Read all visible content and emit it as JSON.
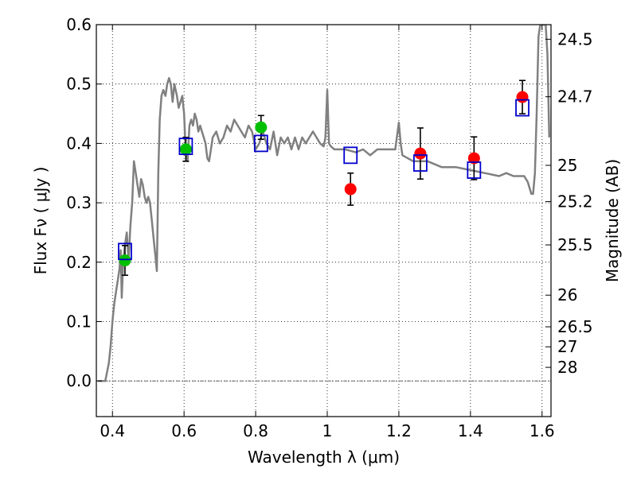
{
  "chart_data": {
    "type": "scatter",
    "xlabel": "Wavelength  λ (μm)",
    "ylabel": "Flux  Fν ( μJy )",
    "y2label": "Magnitude (AB)",
    "xlim": [
      0.355,
      1.625
    ],
    "ylim": [
      -0.06,
      0.6
    ],
    "xticks": [
      0.4,
      0.6,
      0.8,
      1.0,
      1.2,
      1.4,
      1.6
    ],
    "xtick_labels": [
      "0.4",
      "0.6",
      "0.8",
      "1",
      "1.2",
      "1.4",
      "1.6"
    ],
    "yticks": [
      0.0,
      0.1,
      0.2,
      0.3,
      0.4,
      0.5,
      0.6
    ],
    "ytick_labels": [
      "0.0",
      "0.1",
      "0.2",
      "0.3",
      "0.4",
      "0.5",
      "0.6"
    ],
    "y2ticks": [
      {
        "label": "24.5",
        "flux": 0.5754
      },
      {
        "label": "24.7",
        "flux": 0.4786
      },
      {
        "label": "25",
        "flux": 0.3631
      },
      {
        "label": "25.2",
        "flux": 0.302
      },
      {
        "label": "25.5",
        "flux": 0.2291
      },
      {
        "label": "26",
        "flux": 0.1445
      },
      {
        "label": "26.5",
        "flux": 0.0912
      },
      {
        "label": "27",
        "flux": 0.0575
      },
      {
        "label": "28",
        "flux": 0.0229
      }
    ],
    "grid": true,
    "colors": {
      "model": "#808080",
      "green": "#00c000",
      "red": "#ff0000",
      "box": "#0000cc",
      "errorbar": "#000000"
    },
    "series": [
      {
        "style": "line",
        "points": [
          [
            0.36,
            0.0
          ],
          [
            0.38,
            0.0
          ],
          [
            0.39,
            0.03
          ],
          [
            0.395,
            0.06
          ],
          [
            0.4,
            0.1
          ],
          [
            0.405,
            0.13
          ],
          [
            0.41,
            0.15
          ],
          [
            0.415,
            0.17
          ],
          [
            0.42,
            0.19
          ],
          [
            0.423,
            0.22
          ],
          [
            0.426,
            0.14
          ],
          [
            0.43,
            0.2
          ],
          [
            0.435,
            0.23
          ],
          [
            0.44,
            0.25
          ],
          [
            0.445,
            0.2
          ],
          [
            0.45,
            0.26
          ],
          [
            0.455,
            0.3
          ],
          [
            0.46,
            0.37
          ],
          [
            0.465,
            0.35
          ],
          [
            0.47,
            0.33
          ],
          [
            0.475,
            0.31
          ],
          [
            0.48,
            0.34
          ],
          [
            0.485,
            0.33
          ],
          [
            0.49,
            0.31
          ],
          [
            0.495,
            0.3
          ],
          [
            0.5,
            0.31
          ],
          [
            0.505,
            0.3
          ],
          [
            0.51,
            0.27
          ],
          [
            0.515,
            0.24
          ],
          [
            0.52,
            0.21
          ],
          [
            0.524,
            0.185
          ],
          [
            0.528,
            0.35
          ],
          [
            0.532,
            0.44
          ],
          [
            0.537,
            0.48
          ],
          [
            0.542,
            0.49
          ],
          [
            0.548,
            0.48
          ],
          [
            0.553,
            0.5
          ],
          [
            0.558,
            0.51
          ],
          [
            0.563,
            0.5
          ],
          [
            0.568,
            0.47
          ],
          [
            0.573,
            0.5
          ],
          [
            0.58,
            0.48
          ],
          [
            0.585,
            0.46
          ],
          [
            0.59,
            0.47
          ],
          [
            0.595,
            0.48
          ],
          [
            0.6,
            0.45
          ],
          [
            0.605,
            0.38
          ],
          [
            0.61,
            0.37
          ],
          [
            0.615,
            0.43
          ],
          [
            0.62,
            0.44
          ],
          [
            0.625,
            0.43
          ],
          [
            0.63,
            0.45
          ],
          [
            0.635,
            0.44
          ],
          [
            0.64,
            0.42
          ],
          [
            0.645,
            0.43
          ],
          [
            0.65,
            0.42
          ],
          [
            0.655,
            0.41
          ],
          [
            0.66,
            0.4
          ],
          [
            0.665,
            0.375
          ],
          [
            0.67,
            0.37
          ],
          [
            0.675,
            0.39
          ],
          [
            0.68,
            0.41
          ],
          [
            0.69,
            0.42
          ],
          [
            0.7,
            0.4
          ],
          [
            0.71,
            0.41
          ],
          [
            0.72,
            0.43
          ],
          [
            0.73,
            0.42
          ],
          [
            0.74,
            0.44
          ],
          [
            0.75,
            0.43
          ],
          [
            0.76,
            0.42
          ],
          [
            0.77,
            0.41
          ],
          [
            0.78,
            0.43
          ],
          [
            0.79,
            0.42
          ],
          [
            0.8,
            0.39
          ],
          [
            0.81,
            0.4
          ],
          [
            0.82,
            0.42
          ],
          [
            0.83,
            0.4
          ],
          [
            0.84,
            0.39
          ],
          [
            0.85,
            0.42
          ],
          [
            0.86,
            0.38
          ],
          [
            0.87,
            0.41
          ],
          [
            0.88,
            0.4
          ],
          [
            0.89,
            0.41
          ],
          [
            0.9,
            0.39
          ],
          [
            0.91,
            0.41
          ],
          [
            0.92,
            0.39
          ],
          [
            0.93,
            0.41
          ],
          [
            0.94,
            0.4
          ],
          [
            0.95,
            0.41
          ],
          [
            0.96,
            0.42
          ],
          [
            0.97,
            0.41
          ],
          [
            0.98,
            0.4
          ],
          [
            0.99,
            0.395
          ],
          [
            0.995,
            0.41
          ],
          [
            1.0,
            0.49
          ],
          [
            1.005,
            0.4
          ],
          [
            1.01,
            0.395
          ],
          [
            1.02,
            0.39
          ],
          [
            1.05,
            0.39
          ],
          [
            1.08,
            0.385
          ],
          [
            1.1,
            0.39
          ],
          [
            1.12,
            0.38
          ],
          [
            1.14,
            0.39
          ],
          [
            1.16,
            0.39
          ],
          [
            1.18,
            0.39
          ],
          [
            1.19,
            0.39
          ],
          [
            1.2,
            0.435
          ],
          [
            1.205,
            0.4
          ],
          [
            1.21,
            0.38
          ],
          [
            1.24,
            0.37
          ],
          [
            1.28,
            0.37
          ],
          [
            1.32,
            0.36
          ],
          [
            1.36,
            0.36
          ],
          [
            1.4,
            0.355
          ],
          [
            1.44,
            0.35
          ],
          [
            1.48,
            0.345
          ],
          [
            1.5,
            0.35
          ],
          [
            1.52,
            0.345
          ],
          [
            1.55,
            0.345
          ],
          [
            1.56,
            0.335
          ],
          [
            1.57,
            0.315
          ],
          [
            1.575,
            0.315
          ],
          [
            1.58,
            0.35
          ],
          [
            1.585,
            0.45
          ],
          [
            1.59,
            0.58
          ],
          [
            1.595,
            0.6
          ],
          [
            1.61,
            0.6
          ],
          [
            1.615,
            0.55
          ],
          [
            1.62,
            0.41
          ]
        ]
      },
      {
        "style": "points",
        "color": "green",
        "points": [
          {
            "x": 0.435,
            "y": 0.203,
            "err": 0.025
          },
          {
            "x": 0.605,
            "y": 0.39,
            "err": 0.02
          },
          {
            "x": 0.815,
            "y": 0.427,
            "err": 0.02
          }
        ]
      },
      {
        "style": "points",
        "color": "red",
        "points": [
          {
            "x": 1.065,
            "y": 0.323,
            "err": 0.027
          },
          {
            "x": 1.26,
            "y": 0.383,
            "err": 0.043
          },
          {
            "x": 1.41,
            "y": 0.375,
            "err": 0.036
          },
          {
            "x": 1.545,
            "y": 0.478,
            "err": 0.028
          }
        ]
      },
      {
        "style": "boxes",
        "color": "box",
        "points": [
          {
            "x": 0.435,
            "y": 0.218
          },
          {
            "x": 0.605,
            "y": 0.395
          },
          {
            "x": 0.815,
            "y": 0.4
          },
          {
            "x": 1.065,
            "y": 0.38
          },
          {
            "x": 1.26,
            "y": 0.367
          },
          {
            "x": 1.41,
            "y": 0.355
          },
          {
            "x": 1.545,
            "y": 0.46
          }
        ]
      }
    ]
  }
}
